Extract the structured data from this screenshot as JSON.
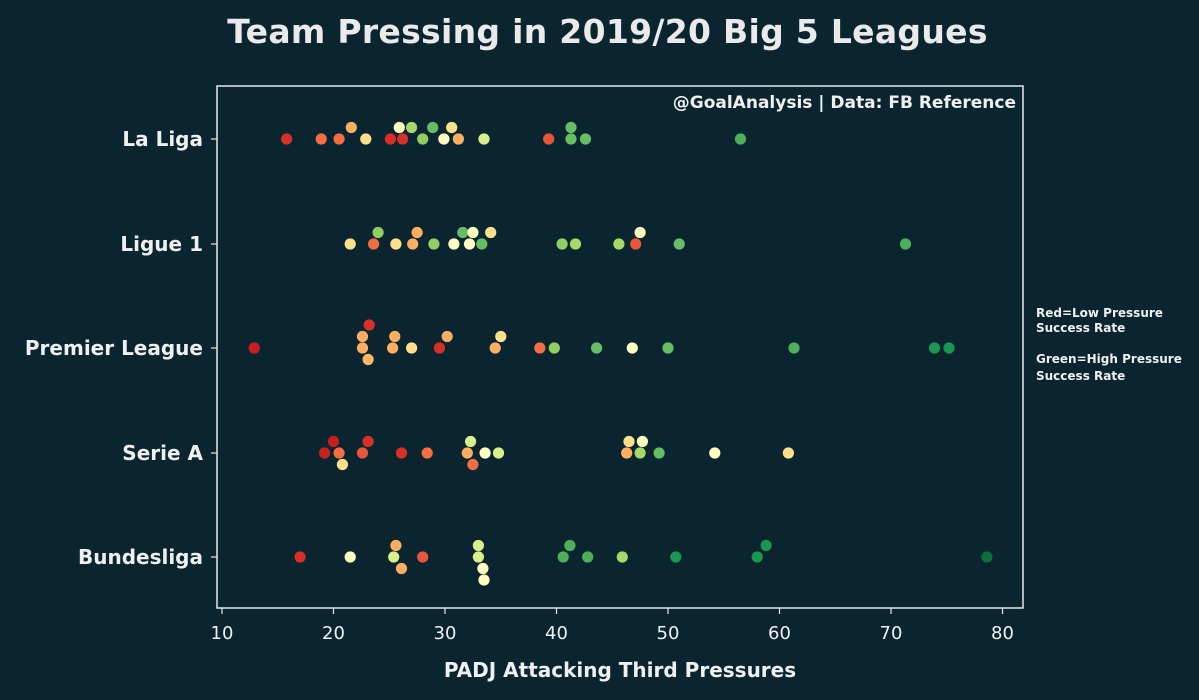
{
  "chart_data": {
    "type": "scatter",
    "title": "Team Pressing in 2019/20 Big 5 Leagues",
    "xlabel": "PADJ Attacking Third Pressures",
    "ylabel": "",
    "xlim": [
      9.5,
      82
    ],
    "xticks": [
      10,
      20,
      30,
      40,
      50,
      60,
      70,
      80
    ],
    "credit": "@GoalAnalysis | Data: FB Reference",
    "legend_note": [
      "Red=Low Pressure",
      "Success Rate",
      "Green=High Pressure",
      "Success Rate"
    ],
    "color_scale": {
      "low": "#c8201f",
      "mid_low": "#f46d43",
      "mid": "#fdb863",
      "mid_high": "#ffffbf",
      "high_light": "#a6d96a",
      "high": "#1a9850",
      "highest": "#0b7038"
    },
    "categories": [
      "La Liga",
      "Ligue 1",
      "Premier League",
      "Serie A",
      "Bundesliga"
    ],
    "series": [
      {
        "league": "La Liga",
        "points": [
          {
            "x": 15.8,
            "offset": 0,
            "color": "#d73027"
          },
          {
            "x": 18.9,
            "offset": 0,
            "color": "#f46d43"
          },
          {
            "x": 20.5,
            "offset": 0,
            "color": "#f46d43"
          },
          {
            "x": 21.6,
            "offset": 1,
            "color": "#fdae61"
          },
          {
            "x": 22.9,
            "offset": 0,
            "color": "#fee08b"
          },
          {
            "x": 25.1,
            "offset": 0,
            "color": "#d73027"
          },
          {
            "x": 25.9,
            "offset": 1,
            "color": "#ffffbf"
          },
          {
            "x": 26.2,
            "offset": 0,
            "color": "#d73027"
          },
          {
            "x": 27.0,
            "offset": 1,
            "color": "#a6d96a"
          },
          {
            "x": 28.0,
            "offset": 0,
            "color": "#91cf60"
          },
          {
            "x": 28.9,
            "offset": 1,
            "color": "#66bd63"
          },
          {
            "x": 29.9,
            "offset": 0,
            "color": "#ffffbf"
          },
          {
            "x": 30.6,
            "offset": 1,
            "color": "#fee08b"
          },
          {
            "x": 31.2,
            "offset": 0,
            "color": "#fdae61"
          },
          {
            "x": 33.5,
            "offset": 0,
            "color": "#d9ef8b"
          },
          {
            "x": 39.3,
            "offset": 0,
            "color": "#e8553a"
          },
          {
            "x": 41.3,
            "offset": 1,
            "color": "#66bd63"
          },
          {
            "x": 41.3,
            "offset": 0,
            "color": "#66bd63"
          },
          {
            "x": 42.6,
            "offset": 0,
            "color": "#66bd63"
          },
          {
            "x": 56.5,
            "offset": 0,
            "color": "#4daf5a"
          }
        ]
      },
      {
        "league": "Ligue 1",
        "points": [
          {
            "x": 21.5,
            "offset": 0,
            "color": "#fee08b"
          },
          {
            "x": 23.6,
            "offset": 0,
            "color": "#f46d43"
          },
          {
            "x": 24.0,
            "offset": 1,
            "color": "#91cf60"
          },
          {
            "x": 25.6,
            "offset": 0,
            "color": "#fee08b"
          },
          {
            "x": 27.1,
            "offset": 0,
            "color": "#fdae61"
          },
          {
            "x": 27.5,
            "offset": 1,
            "color": "#fdae61"
          },
          {
            "x": 29.0,
            "offset": 0,
            "color": "#91cf60"
          },
          {
            "x": 30.8,
            "offset": 0,
            "color": "#ffffbf"
          },
          {
            "x": 31.6,
            "offset": 1,
            "color": "#66bd63"
          },
          {
            "x": 32.2,
            "offset": 0,
            "color": "#ffffbf"
          },
          {
            "x": 32.5,
            "offset": 1,
            "color": "#ffffbf"
          },
          {
            "x": 33.3,
            "offset": 0,
            "color": "#66bd63"
          },
          {
            "x": 34.1,
            "offset": 1,
            "color": "#fee08b"
          },
          {
            "x": 40.5,
            "offset": 0,
            "color": "#91cf60"
          },
          {
            "x": 41.7,
            "offset": 0,
            "color": "#a6d96a"
          },
          {
            "x": 45.6,
            "offset": 0,
            "color": "#a6d96a"
          },
          {
            "x": 47.1,
            "offset": 0,
            "color": "#e8553a"
          },
          {
            "x": 47.5,
            "offset": 1,
            "color": "#ffffbf"
          },
          {
            "x": 51.0,
            "offset": 0,
            "color": "#66bd63"
          },
          {
            "x": 71.3,
            "offset": 0,
            "color": "#4daf5a"
          }
        ]
      },
      {
        "league": "Premier League",
        "points": [
          {
            "x": 12.9,
            "offset": 0,
            "color": "#c8201f"
          },
          {
            "x": 22.6,
            "offset": 1,
            "color": "#fdae61"
          },
          {
            "x": 22.6,
            "offset": 0,
            "color": "#fdae61"
          },
          {
            "x": 23.1,
            "offset": -1,
            "color": "#fdb863"
          },
          {
            "x": 23.2,
            "offset": 2,
            "color": "#d73027"
          },
          {
            "x": 25.3,
            "offset": 0,
            "color": "#fdae61"
          },
          {
            "x": 25.5,
            "offset": 1,
            "color": "#fdae61"
          },
          {
            "x": 27.0,
            "offset": 0,
            "color": "#fee08b"
          },
          {
            "x": 29.5,
            "offset": 0,
            "color": "#d73027"
          },
          {
            "x": 30.2,
            "offset": 1,
            "color": "#fdae61"
          },
          {
            "x": 34.5,
            "offset": 0,
            "color": "#fdae61"
          },
          {
            "x": 35.0,
            "offset": 1,
            "color": "#fee08b"
          },
          {
            "x": 38.5,
            "offset": 0,
            "color": "#f46d43"
          },
          {
            "x": 39.8,
            "offset": 0,
            "color": "#91cf60"
          },
          {
            "x": 43.6,
            "offset": 0,
            "color": "#66bd63"
          },
          {
            "x": 46.8,
            "offset": 0,
            "color": "#ffffbf"
          },
          {
            "x": 50.0,
            "offset": 0,
            "color": "#66bd63"
          },
          {
            "x": 61.3,
            "offset": 0,
            "color": "#4daf5a"
          },
          {
            "x": 73.9,
            "offset": 0,
            "color": "#1a9850"
          },
          {
            "x": 75.2,
            "offset": 0,
            "color": "#1a9850"
          }
        ]
      },
      {
        "league": "Serie A",
        "points": [
          {
            "x": 19.2,
            "offset": 0,
            "color": "#c8201f"
          },
          {
            "x": 20.0,
            "offset": 1,
            "color": "#c8201f"
          },
          {
            "x": 20.5,
            "offset": 0,
            "color": "#f46d43"
          },
          {
            "x": 20.8,
            "offset": -1,
            "color": "#fee08b"
          },
          {
            "x": 22.6,
            "offset": 0,
            "color": "#e8553a"
          },
          {
            "x": 23.1,
            "offset": 1,
            "color": "#d73027"
          },
          {
            "x": 26.1,
            "offset": 0,
            "color": "#d73027"
          },
          {
            "x": 28.4,
            "offset": 0,
            "color": "#f46d43"
          },
          {
            "x": 32.0,
            "offset": 0,
            "color": "#fdae61"
          },
          {
            "x": 32.3,
            "offset": 1,
            "color": "#d9ef8b"
          },
          {
            "x": 32.5,
            "offset": -1,
            "color": "#f46d43"
          },
          {
            "x": 33.6,
            "offset": 0,
            "color": "#ffffbf"
          },
          {
            "x": 34.8,
            "offset": 0,
            "color": "#d9ef8b"
          },
          {
            "x": 46.3,
            "offset": 0,
            "color": "#fdae61"
          },
          {
            "x": 46.5,
            "offset": 1,
            "color": "#fee08b"
          },
          {
            "x": 47.5,
            "offset": 0,
            "color": "#a6d96a"
          },
          {
            "x": 47.7,
            "offset": 1,
            "color": "#ffffbf"
          },
          {
            "x": 49.2,
            "offset": 0,
            "color": "#66bd63"
          },
          {
            "x": 54.2,
            "offset": 0,
            "color": "#ffffbf"
          },
          {
            "x": 60.8,
            "offset": 0,
            "color": "#fee08b"
          }
        ]
      },
      {
        "league": "Bundesliga",
        "points": [
          {
            "x": 17.0,
            "offset": 0,
            "color": "#d73027"
          },
          {
            "x": 21.5,
            "offset": 0,
            "color": "#ffffbf"
          },
          {
            "x": 25.4,
            "offset": 0,
            "color": "#d9ef8b"
          },
          {
            "x": 25.6,
            "offset": 1,
            "color": "#fdae61"
          },
          {
            "x": 26.1,
            "offset": -1,
            "color": "#fdae61"
          },
          {
            "x": 28.0,
            "offset": 0,
            "color": "#e8553a"
          },
          {
            "x": 33.0,
            "offset": 1,
            "color": "#d9ef8b"
          },
          {
            "x": 33.0,
            "offset": 0,
            "color": "#d9ef8b"
          },
          {
            "x": 33.4,
            "offset": -1,
            "color": "#ffffbf"
          },
          {
            "x": 33.5,
            "offset": -2,
            "color": "#ffffbf"
          },
          {
            "x": 40.6,
            "offset": 0,
            "color": "#4daf5a"
          },
          {
            "x": 41.2,
            "offset": 1,
            "color": "#4daf5a"
          },
          {
            "x": 42.8,
            "offset": 0,
            "color": "#4daf5a"
          },
          {
            "x": 45.9,
            "offset": 0,
            "color": "#a6d96a"
          },
          {
            "x": 50.7,
            "offset": 0,
            "color": "#1a9850"
          },
          {
            "x": 58.0,
            "offset": 0,
            "color": "#1a9850"
          },
          {
            "x": 58.8,
            "offset": 1,
            "color": "#1a9850"
          },
          {
            "x": 78.6,
            "offset": 0,
            "color": "#0b7038"
          }
        ]
      }
    ]
  }
}
